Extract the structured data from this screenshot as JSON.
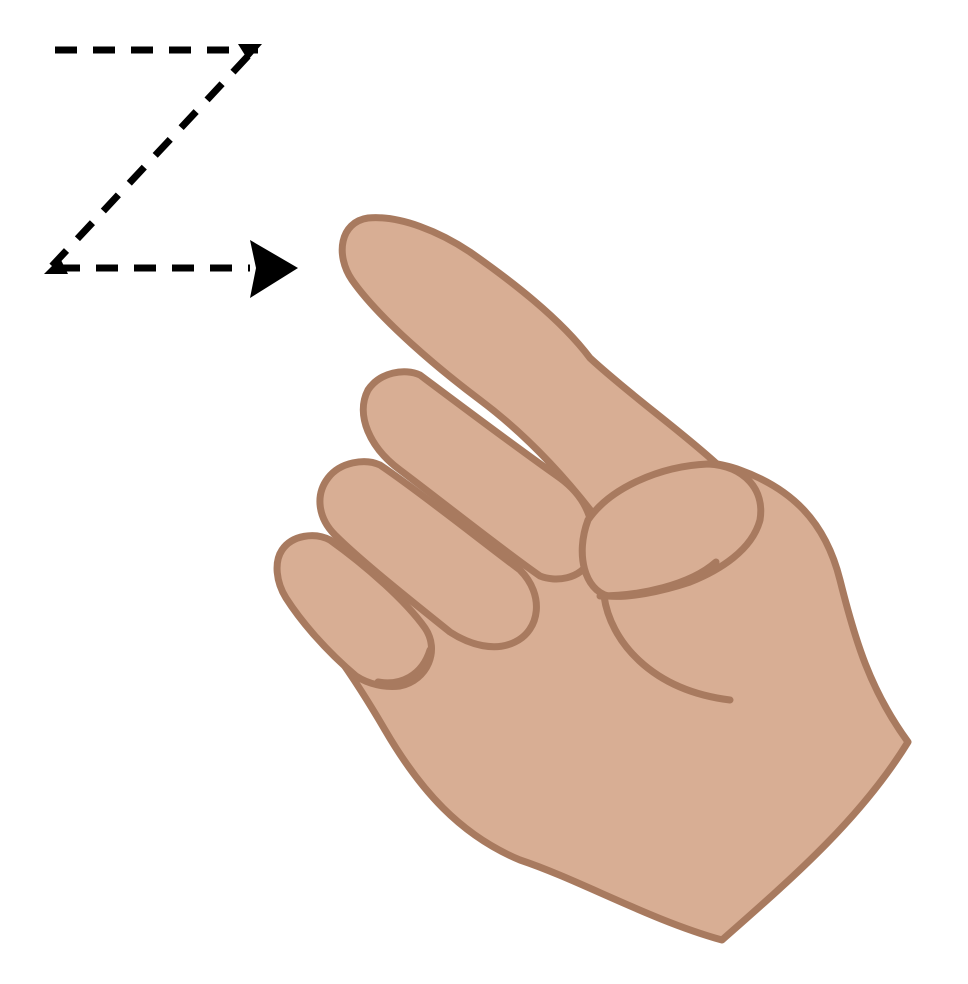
{
  "illustration": {
    "icons": [
      "dashed-z-stroke-icon",
      "arrowhead-icon",
      "pointing-hand-icon"
    ],
    "colors": {
      "background": "#ffffff",
      "skin": "#d8ae94",
      "outline": "#a87a5f",
      "stroke_path": "#000000"
    }
  }
}
